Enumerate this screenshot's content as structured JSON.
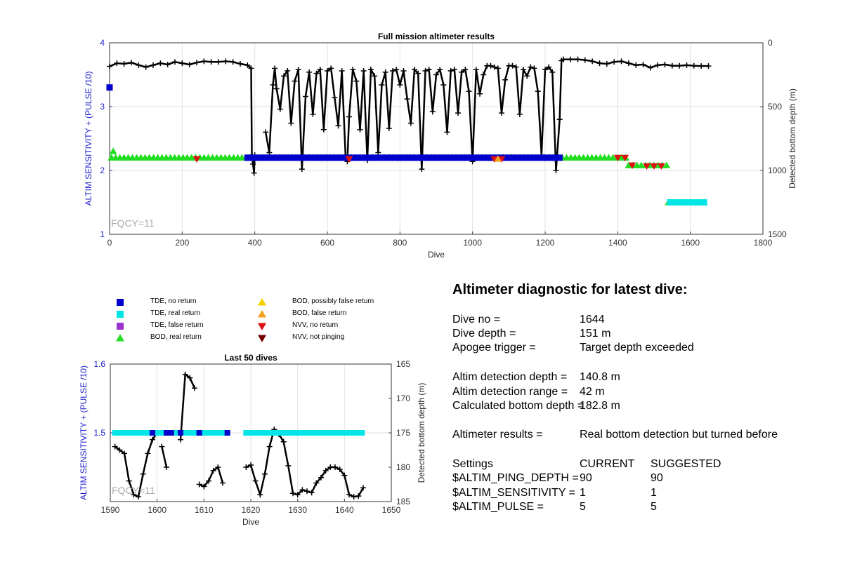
{
  "chart_data": [
    {
      "type": "scatter",
      "title": "Full mission altimeter results",
      "xlabel": "Dive",
      "ylabel_left": "ALTIM SENSITIVITY + (PULSE /10)",
      "ylabel_right": "Detected bottom depth (m)",
      "xlim": [
        0,
        1800
      ],
      "ylim_left": [
        1,
        4
      ],
      "ylim_right": [
        1500,
        0
      ],
      "right_axis_reversed": true,
      "xticks": [
        0,
        200,
        400,
        600,
        800,
        1000,
        1200,
        1400,
        1600,
        1800
      ],
      "yticks_left": [
        1,
        2,
        3,
        4
      ],
      "yticks_right": [
        0,
        500,
        1000,
        1500
      ],
      "grid": true,
      "annotation": "FQCY=11",
      "series": [
        {
          "name": "Detected bottom depth",
          "color": "#000000",
          "marker": "plus",
          "axis": "right",
          "segments": [
            {
              "x": [
                0,
                20,
                40,
                60,
                80,
                100,
                120,
                140,
                160,
                180,
                200,
                220,
                240,
                260,
                280,
                300,
                320,
                340,
                360,
                380,
                390,
                392,
                395,
                398,
                400
              ],
              "y": [
                185,
                160,
                165,
                155,
                175,
                190,
                175,
                160,
                170,
                150,
                160,
                170,
                155,
                145,
                150,
                150,
                145,
                150,
                165,
                175,
                200,
                880,
                950,
                1020,
                880
              ]
            },
            {
              "x": [
                430,
                440,
                450,
                455,
                460,
                470,
                480,
                490,
                500,
                510,
                520,
                530,
                540,
                550,
                560,
                570,
                580,
                590,
                600,
                610,
                620,
                630,
                640,
                650,
                655,
                660,
                670,
                680,
                690,
                700,
                710,
                720,
                730,
                740,
                750,
                760,
                770,
                780,
                790,
                800,
                810,
                820,
                830,
                840,
                850,
                860,
                870,
                880,
                890,
                900,
                910,
                920,
                930,
                940,
                950,
                960,
                970,
                980,
                990,
                1000,
                1010,
                1020,
                1030,
                1040,
                1050,
                1060,
                1070,
                1080,
                1090,
                1100,
                1110,
                1120,
                1130,
                1140,
                1150,
                1160,
                1170,
                1180,
                1190,
                1200,
                1210,
                1220,
                1230,
                1240,
                1245,
                1250
              ],
              "y": [
                700,
                860,
                330,
                200,
                360,
                520,
                260,
                220,
                630,
                300,
                210,
                990,
                420,
                230,
                560,
                240,
                210,
                680,
                220,
                200,
                430,
                650,
                220,
                880,
                930,
                580,
                210,
                300,
                680,
                220,
                920,
                210,
                260,
                860,
                330,
                230,
                670,
                220,
                210,
                330,
                220,
                440,
                630,
                210,
                240,
                990,
                220,
                210,
                540,
                250,
                210,
                330,
                700,
                220,
                210,
                550,
                230,
                210,
                380,
                930,
                210,
                400,
                250,
                180,
                180,
                190,
                200,
                550,
                290,
                180,
                180,
                190,
                560,
                210,
                260,
                190,
                200,
                380,
                880,
                210,
                190,
                230,
                1000,
                600,
                140,
                130
              ]
            },
            {
              "x": [
                1250,
                1270,
                1290,
                1310,
                1330,
                1350,
                1370,
                1390,
                1410,
                1430,
                1450,
                1470,
                1490,
                1510,
                1530,
                1550,
                1570,
                1590,
                1610,
                1630,
                1650
              ],
              "y": [
                130,
                130,
                130,
                135,
                145,
                160,
                165,
                150,
                145,
                160,
                175,
                170,
                195,
                175,
                170,
                180,
                180,
                175,
                180,
                182,
                182
              ]
            }
          ]
        },
        {
          "name": "BOD, real return",
          "color": "#22dd22",
          "marker": "triangle-up",
          "axis": "left",
          "segments": [
            {
              "x": [
                5,
                1430
              ],
              "y": [
                2.2,
                2.2
              ]
            },
            {
              "x": [
                1430,
                1545
              ],
              "y": [
                2.08,
                2.08
              ]
            },
            {
              "x": [
                1540,
                1540
              ],
              "y": [
                1.5,
                1.5
              ]
            }
          ],
          "points": [
            {
              "x": 10,
              "y": 2.3
            }
          ]
        },
        {
          "name": "TDE, no return",
          "color": "#0000cc",
          "marker": "square",
          "axis": "left",
          "segments": [
            {
              "x": [
                380,
                1240
              ],
              "y": [
                2.2,
                2.2
              ]
            }
          ],
          "points": [
            {
              "x": 0,
              "y": 3.3
            }
          ]
        },
        {
          "name": "TDE, real return",
          "color": "#00e5e5",
          "marker": "square",
          "axis": "left",
          "segments": [
            {
              "x": [
                1545,
                1648
              ],
              "y": [
                1.5,
                1.5
              ]
            }
          ]
        },
        {
          "name": "NVV, no return",
          "color": "#dd1111",
          "marker": "triangle-down",
          "axis": "left",
          "x": [
            240,
            660,
            1060,
            1080,
            1400,
            1420,
            1440,
            1480,
            1500,
            1520
          ],
          "y": [
            2.18,
            2.18,
            2.18,
            2.18,
            2.2,
            2.2,
            2.08,
            2.07,
            2.07,
            2.07
          ]
        },
        {
          "name": "BOD, false return",
          "color": "#f4a020",
          "marker": "triangle-up",
          "axis": "left",
          "x": [
            1070
          ],
          "y": [
            2.18
          ]
        }
      ]
    },
    {
      "type": "scatter",
      "title": "Last 50 dives",
      "xlabel": "Dive",
      "ylabel_left": "ALTIM SENSITIVITY + (PULSE /10)",
      "ylabel_right": "Detected bottom depth (m)",
      "xlim": [
        1590,
        1650
      ],
      "ylim_left": [
        1.4,
        1.6
      ],
      "ylim_right": [
        185,
        165
      ],
      "right_axis_reversed": true,
      "xticks": [
        1590,
        1600,
        1610,
        1620,
        1630,
        1640,
        1650
      ],
      "yticks_left": [
        1.6,
        1.5
      ],
      "yticks_right": [
        165,
        170,
        175,
        180,
        185
      ],
      "grid": true,
      "annotation": "FQCY=11",
      "series": [
        {
          "name": "Detected bottom depth",
          "color": "#000000",
          "marker": "plus",
          "axis": "right",
          "segments": [
            {
              "x": [
                1591,
                1592,
                1593,
                1594,
                1595,
                1596,
                1597,
                1598,
                1599,
                1600
              ],
              "y": [
                177,
                177.5,
                178,
                182,
                184,
                184.3,
                181,
                178,
                176,
                175
              ]
            },
            {
              "x": [
                1601,
                1602
              ],
              "y": [
                177,
                180
              ]
            },
            {
              "x": [
                1605,
                1606,
                1607,
                1608
              ],
              "y": [
                176,
                166.5,
                167,
                168.5
              ]
            },
            {
              "x": [
                1609,
                1610,
                1611,
                1612,
                1613,
                1614
              ],
              "y": [
                182.5,
                182.8,
                182,
                180.5,
                180,
                182.3
              ]
            },
            {
              "x": [
                1619,
                1620,
                1621,
                1622,
                1623,
                1624,
                1625,
                1626,
                1627,
                1628,
                1629,
                1630,
                1631,
                1632,
                1633,
                1634,
                1635,
                1636,
                1637,
                1638,
                1639,
                1640,
                1641,
                1642,
                1643,
                1644
              ],
              "y": [
                180,
                179.7,
                182,
                184,
                181,
                177,
                174.5,
                175.2,
                176.3,
                179.8,
                183.8,
                184,
                183.3,
                183.5,
                183.7,
                182.3,
                181.5,
                180.5,
                180,
                180,
                180.3,
                181.2,
                184,
                184.3,
                184.2,
                183
              ]
            }
          ]
        },
        {
          "name": "TDE, real return",
          "color": "#00e5e5",
          "marker": "square",
          "axis": "left",
          "segments": [
            {
              "x": [
                1591,
                1615
              ],
              "y": [
                1.5,
                1.5
              ]
            },
            {
              "x": [
                1619,
                1644
              ],
              "y": [
                1.5,
                1.5
              ]
            }
          ]
        },
        {
          "name": "TDE, no return",
          "color": "#0000cc",
          "marker": "square",
          "axis": "left",
          "x": [
            1599,
            1602,
            1603,
            1605,
            1609,
            1615
          ],
          "y": [
            1.5,
            1.5,
            1.5,
            1.5,
            1.5,
            1.5
          ]
        }
      ]
    }
  ],
  "legend": {
    "items": [
      {
        "label": "TDE, no return",
        "color": "#0000cc",
        "marker": "square"
      },
      {
        "label": "TDE, real return",
        "color": "#00e5e5",
        "marker": "square"
      },
      {
        "label": "TDE, false return",
        "color": "#9933cc",
        "marker": "square"
      },
      {
        "label": "BOD, real return",
        "color": "#22dd22",
        "marker": "triangle-up"
      },
      {
        "label": "BOD, possibly false return",
        "color": "#f5d000",
        "marker": "triangle-up"
      },
      {
        "label": "BOD, false return",
        "color": "#f4a020",
        "marker": "triangle-up"
      },
      {
        "label": "NVV, no return",
        "color": "#dd1111",
        "marker": "triangle-down"
      },
      {
        "label": "NVV, not pinging",
        "color": "#7a0000",
        "marker": "triangle-down"
      }
    ]
  },
  "diagnostic": {
    "title": "Altimeter diagnostic for latest dive:",
    "dive_no_label": "Dive no =",
    "dive_no": "1644",
    "dive_depth_label": "Dive depth =",
    "dive_depth": "151 m",
    "apogee_label": "Apogee trigger =",
    "apogee": "Target depth exceeded",
    "detection_depth_label": "Altim detection depth =",
    "detection_depth": "140.8 m",
    "detection_range_label": "Altim detection range =",
    "detection_range": "42 m",
    "bottom_depth_label": "Calculated bottom depth =",
    "bottom_depth": "182.8 m",
    "results_label": "Altimeter results =",
    "results": "Real bottom detection but turned before",
    "settings_label": "Settings",
    "current_label": "CURRENT",
    "suggested_label": "SUGGESTED",
    "ping_depth_label": "$ALTIM_PING_DEPTH =",
    "ping_depth_current": "90",
    "ping_depth_suggested": "90",
    "sensitivity_label": "$ALTIM_SENSITIVITY =",
    "sensitivity_current": "1",
    "sensitivity_suggested": "1",
    "pulse_label": "$ALTIM_PULSE =",
    "pulse_current": "5",
    "pulse_suggested": "5"
  }
}
